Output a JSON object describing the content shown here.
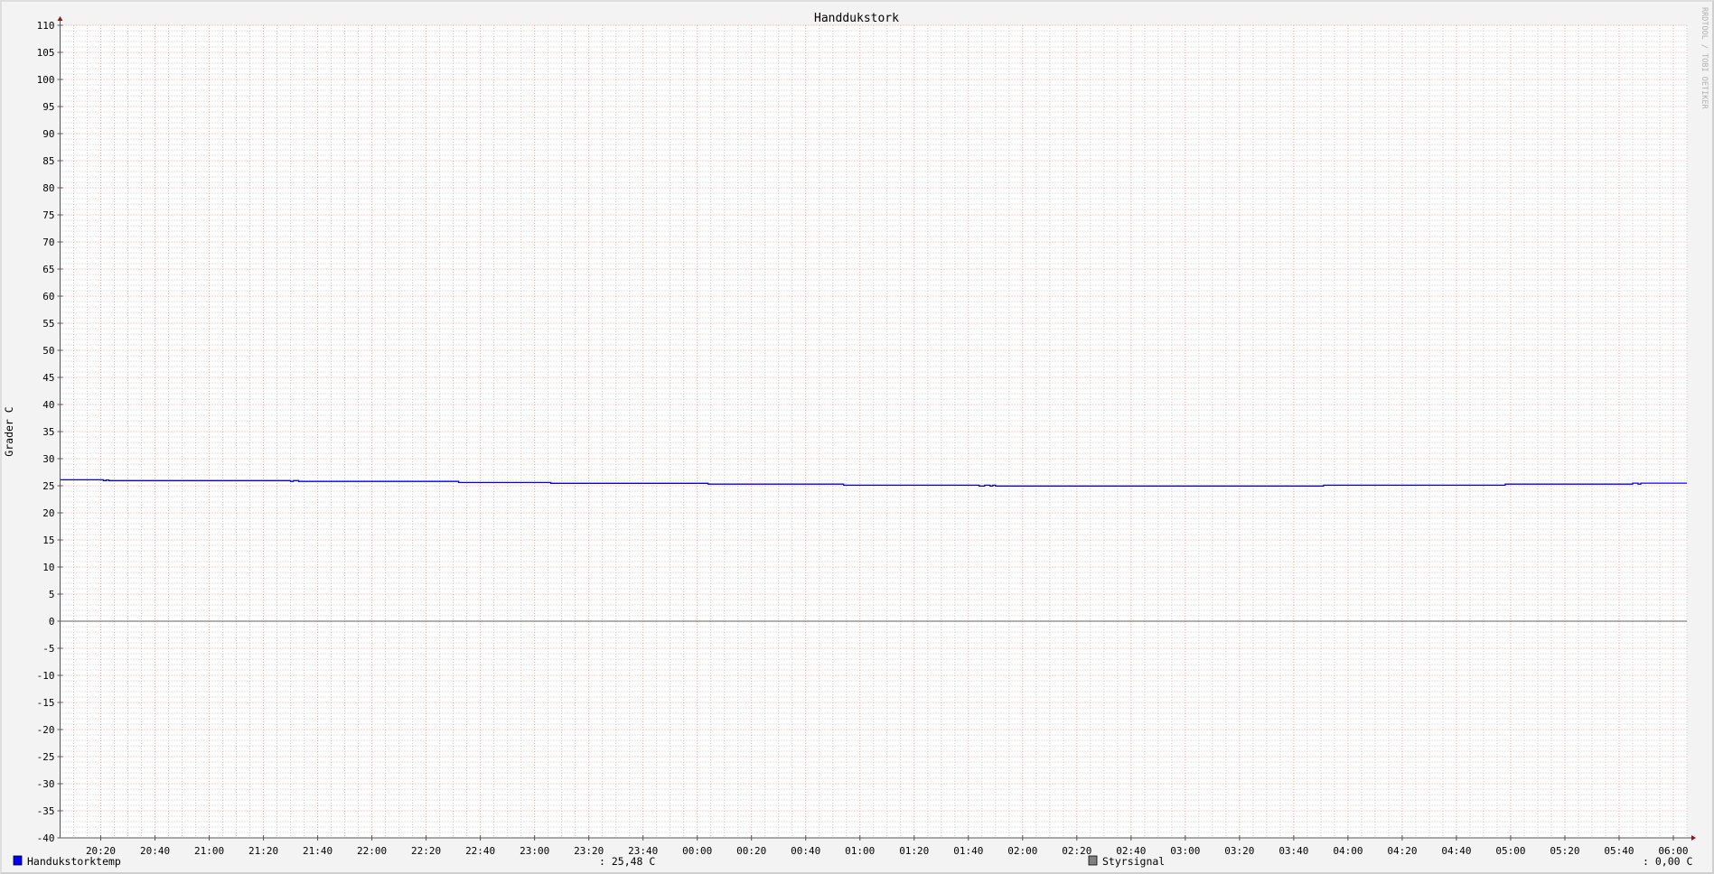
{
  "chart_data": {
    "type": "line",
    "title": "Handdukstork",
    "ylabel": "Grader C",
    "xlabel": "",
    "watermark": "RRDTOOL / TOBI OETIKER",
    "ylim": [
      -40,
      110
    ],
    "xlim": [
      "20:05",
      "06:05"
    ],
    "y_ticks": [
      110,
      105,
      100,
      95,
      90,
      85,
      80,
      75,
      70,
      65,
      60,
      55,
      50,
      45,
      40,
      35,
      30,
      25,
      20,
      15,
      10,
      5,
      0,
      -5,
      -10,
      -15,
      -20,
      -25,
      -30,
      -35,
      -40
    ],
    "x_ticks": [
      "20:20",
      "20:40",
      "21:00",
      "21:20",
      "21:40",
      "22:00",
      "22:20",
      "22:40",
      "23:00",
      "23:20",
      "23:40",
      "00:00",
      "00:20",
      "00:40",
      "01:00",
      "01:20",
      "01:40",
      "02:00",
      "02:20",
      "02:40",
      "03:00",
      "03:20",
      "03:40",
      "04:00",
      "04:20",
      "04:40",
      "05:00",
      "05:20",
      "05:40",
      "06:00"
    ],
    "grid": true,
    "colors": {
      "background": "#f3f3f3",
      "canvas": "#ffffff",
      "major_grid": "#ff8080",
      "minor_grid": "#c8c8c8",
      "axis": "#555555",
      "arrow": "#8b1a1a"
    },
    "series": [
      {
        "name": "Handukstorktemp",
        "color": "#0000ff",
        "step": true,
        "points": [
          [
            "20:05",
            26.1
          ],
          [
            "20:21",
            25.95
          ],
          [
            "20:22",
            26.05
          ],
          [
            "20:23",
            25.95
          ],
          [
            "21:30",
            25.8
          ],
          [
            "21:31",
            25.95
          ],
          [
            "21:33",
            25.8
          ],
          [
            "22:32",
            25.6
          ],
          [
            "23:06",
            25.45
          ],
          [
            "00:04",
            25.3
          ],
          [
            "00:54",
            25.1
          ],
          [
            "01:44",
            24.95
          ],
          [
            "01:46",
            25.1
          ],
          [
            "01:48",
            24.95
          ],
          [
            "01:49",
            25.1
          ],
          [
            "01:50",
            24.95
          ],
          [
            "03:51",
            25.1
          ],
          [
            "04:58",
            25.3
          ],
          [
            "05:45",
            25.48
          ],
          [
            "05:47",
            25.3
          ],
          [
            "05:48",
            25.48
          ],
          [
            "06:05",
            25.48
          ]
        ],
        "legend_value": ": 25,48 C"
      },
      {
        "name": "Styrsignal",
        "color": "#808080",
        "step": true,
        "points": [
          [
            "20:05",
            0
          ],
          [
            "06:05",
            0
          ]
        ],
        "legend_value": ": 0,00 C"
      }
    ]
  }
}
